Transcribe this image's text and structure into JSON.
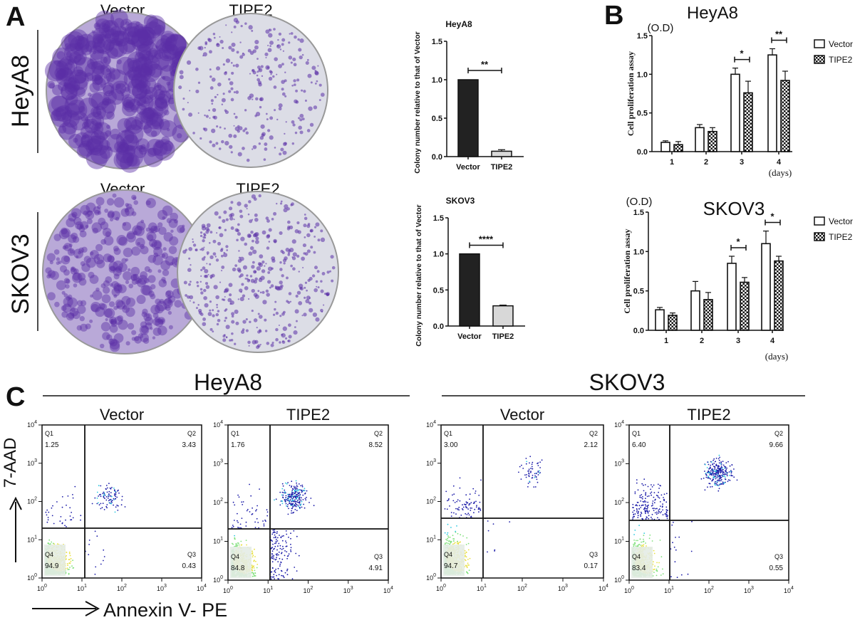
{
  "panels": {
    "a": "A",
    "b": "B",
    "c": "C"
  },
  "panel_a": {
    "col_labels": [
      "Vector",
      "TIPE2"
    ],
    "row_labels": [
      "HeyA8",
      "SKOV3"
    ],
    "plate_colors": {
      "stain": "#5a2ea6",
      "light": "#e9e6f2"
    }
  },
  "chart_data": [
    {
      "id": "colony_heya8",
      "type": "bar",
      "title": "HeyA8",
      "ylabel": "Colony number relative to that of Vector",
      "xlabel": "",
      "categories": [
        "Vector",
        "TIPE2"
      ],
      "values": [
        1.0,
        0.07
      ],
      "errors": [
        0,
        0.02
      ],
      "colors": [
        "#222222",
        "#d8d8d8"
      ],
      "ylim": [
        0,
        1.5
      ],
      "yticks": [
        "0.0",
        "0.5",
        "1.0",
        "1.5"
      ],
      "significance": "**"
    },
    {
      "id": "colony_skov3",
      "type": "bar",
      "title": "SKOV3",
      "ylabel": "Colony number relative to that of Vector",
      "xlabel": "",
      "categories": [
        "Vector",
        "TIPE2"
      ],
      "values": [
        1.0,
        0.28
      ],
      "errors": [
        0,
        0.01
      ],
      "colors": [
        "#222222",
        "#d8d8d8"
      ],
      "ylim": [
        0,
        1.5
      ],
      "yticks": [
        "0.0",
        "0.5",
        "1.0",
        "1.5"
      ],
      "significance": "****"
    },
    {
      "id": "prolif_heya8",
      "type": "bar",
      "title": "HeyA8",
      "unit": "(O.D)",
      "ylabel": "Cell proliferation assay",
      "xlabel": "(days)",
      "categories": [
        "1",
        "2",
        "3",
        "4"
      ],
      "ylim": [
        0,
        1.5
      ],
      "yticks": [
        "0.0",
        "0.5",
        "1.0",
        "1.5"
      ],
      "series": [
        {
          "name": "Vector",
          "values": [
            0.12,
            0.31,
            1.0,
            1.25
          ],
          "errors": [
            0.02,
            0.04,
            0.08,
            0.08
          ]
        },
        {
          "name": "TIPE2",
          "values": [
            0.09,
            0.26,
            0.76,
            0.92
          ],
          "errors": [
            0.04,
            0.05,
            0.15,
            0.12
          ]
        }
      ],
      "significance": [
        "",
        "",
        "*",
        "**"
      ],
      "legend": "right"
    },
    {
      "id": "prolif_skov3",
      "type": "bar",
      "title": "SKOV3",
      "unit": "(O.D)",
      "ylabel": "Cell proliferation assay",
      "xlabel": "(days)",
      "categories": [
        "1",
        "2",
        "3",
        "4"
      ],
      "ylim": [
        0,
        1.5
      ],
      "yticks": [
        "0.0",
        "0.5",
        "1.0",
        "1.5"
      ],
      "series": [
        {
          "name": "Vector",
          "values": [
            0.26,
            0.5,
            0.85,
            1.1
          ],
          "errors": [
            0.03,
            0.12,
            0.09,
            0.16
          ]
        },
        {
          "name": "TIPE2",
          "values": [
            0.19,
            0.39,
            0.61,
            0.88
          ],
          "errors": [
            0.03,
            0.09,
            0.06,
            0.06
          ]
        }
      ],
      "significance": [
        "",
        "",
        "*",
        "*"
      ],
      "legend": "right"
    },
    {
      "id": "flow",
      "type": "scatter",
      "xlabel": "Annexin V- PE",
      "ylabel": "7-AAD",
      "log_scale": true,
      "xticks": [
        "10^0",
        "10^1",
        "10^2",
        "10^3",
        "10^4"
      ],
      "yticks": [
        "10^0",
        "10^1",
        "10^2",
        "10^3",
        "10^4"
      ],
      "groups": [
        {
          "cell_line": "HeyA8",
          "condition": "Vector",
          "Q1": "1.25",
          "Q2": "3.43",
          "Q3": "0.43",
          "Q4": "94.9"
        },
        {
          "cell_line": "HeyA8",
          "condition": "TIPE2",
          "Q1": "1.76",
          "Q2": "8.52",
          "Q3": "4.91",
          "Q4": "84.8"
        },
        {
          "cell_line": "SKOV3",
          "condition": "Vector",
          "Q1": "3.00",
          "Q2": "2.12",
          "Q3": "0.17",
          "Q4": "94.7"
        },
        {
          "cell_line": "SKOV3",
          "condition": "TIPE2",
          "Q1": "6.40",
          "Q2": "9.66",
          "Q3": "0.55",
          "Q4": "83.4"
        }
      ],
      "cell_lines": [
        "HeyA8",
        "SKOV3"
      ],
      "dot_colors": [
        "#1a1aa8",
        "#3b5be0",
        "#29c8e0",
        "#7fe07a",
        "#e8e040"
      ]
    }
  ]
}
